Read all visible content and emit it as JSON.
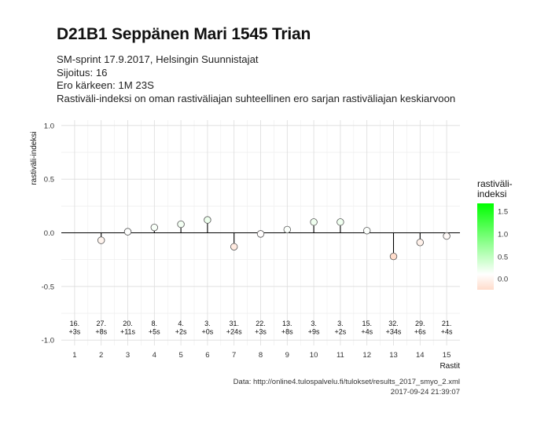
{
  "header": {
    "title": "D21B1 Seppänen Mari 1545 Trian",
    "subtitle_lines": [
      "SM-sprint 17.9.2017, Helsingin Suunnistajat",
      "Sijoitus: 16",
      "Ero kärkeen: 1M 23S",
      "Rastiväli-indeksi on oman rastiväliajan suhteellinen ero sarjan rastiväliajan keskiarvoon"
    ]
  },
  "caption": {
    "source": "Data: http://online4.tulospalvelu.fi/tulokset/results_2017_smyo_2.xml",
    "timestamp": "2017-09-24 21:39:07"
  },
  "legend": {
    "title_line1": "rastiväli-",
    "title_line2": "indeksi",
    "ticks": [
      "1.5",
      "1.0",
      "0.5",
      "0.0"
    ],
    "tick_values": [
      1.5,
      1.0,
      0.5,
      0.0
    ],
    "colors": {
      "high": "#00ff00",
      "mid": "#ffffff",
      "low": "#ffdccb"
    }
  },
  "chart_data": {
    "type": "scatter",
    "style": "lollipop",
    "xlabel": "Rastit",
    "ylabel": "rastiväli-indeksi",
    "xlim": [
      0.5,
      15.5
    ],
    "ylim": [
      -1.05,
      1.05
    ],
    "x_ticks": [
      1,
      2,
      3,
      4,
      5,
      6,
      7,
      8,
      9,
      10,
      11,
      12,
      13,
      14,
      15
    ],
    "y_ticks": [
      1.0,
      0.5,
      0.0,
      -0.5,
      -1.0
    ],
    "y_tick_labels": [
      "1.0",
      "0.5",
      "0.0",
      "-0.5",
      "-1.0"
    ],
    "grid": true,
    "legend_position": "right",
    "points": [
      {
        "x": 2,
        "y": -0.07,
        "rank": "27.",
        "diff": "+8s"
      },
      {
        "x": 3,
        "y": 0.01,
        "rank": "20.",
        "diff": "+11s"
      },
      {
        "x": 4,
        "y": 0.05,
        "rank": "8.",
        "diff": "+5s"
      },
      {
        "x": 5,
        "y": 0.08,
        "rank": "4.",
        "diff": "+2s"
      },
      {
        "x": 6,
        "y": 0.12,
        "rank": "3.",
        "diff": "+0s"
      },
      {
        "x": 7,
        "y": -0.13,
        "rank": "31.",
        "diff": "+24s"
      },
      {
        "x": 8,
        "y": -0.01,
        "rank": "22.",
        "diff": "+3s"
      },
      {
        "x": 9,
        "y": 0.03,
        "rank": "13.",
        "diff": "+8s"
      },
      {
        "x": 10,
        "y": 0.1,
        "rank": "3.",
        "diff": "+9s"
      },
      {
        "x": 11,
        "y": 0.1,
        "rank": "3.",
        "diff": "+2s"
      },
      {
        "x": 12,
        "y": 0.02,
        "rank": "15.",
        "diff": "+4s"
      },
      {
        "x": 13,
        "y": -0.22,
        "rank": "32.",
        "diff": "+34s"
      },
      {
        "x": 14,
        "y": -0.09,
        "rank": "29.",
        "diff": "+6s"
      },
      {
        "x": 15,
        "y": -0.03,
        "rank": "21.",
        "diff": "+4s"
      }
    ],
    "first_label": {
      "x": 1,
      "rank": "16.",
      "diff": "+3s"
    }
  }
}
